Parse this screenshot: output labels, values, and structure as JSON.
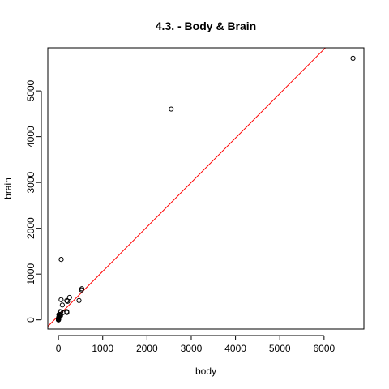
{
  "chart_data": {
    "type": "scatter",
    "title": "4.3. - Body & Brain",
    "xlabel": "body",
    "ylabel": "brain",
    "xlim": [
      -240,
      6900
    ],
    "ylim": [
      -200,
      5940
    ],
    "x_ticks": [
      0,
      1000,
      2000,
      3000,
      4000,
      5000,
      6000
    ],
    "y_ticks": [
      0,
      1000,
      2000,
      3000,
      4000,
      5000
    ],
    "grid": false,
    "legend": "none",
    "point_color": "#000000",
    "series": [
      {
        "points": [
          {
            "x": 6654,
            "y": 5712
          },
          {
            "x": 2547,
            "y": 4603
          },
          {
            "x": 62,
            "y": 1320
          },
          {
            "x": 521,
            "y": 655
          },
          {
            "x": 529,
            "y": 680
          },
          {
            "x": 465,
            "y": 423
          },
          {
            "x": 207,
            "y": 406
          },
          {
            "x": 250,
            "y": 490
          },
          {
            "x": 187,
            "y": 419
          },
          {
            "x": 87,
            "y": 325
          },
          {
            "x": 60,
            "y": 440
          },
          {
            "x": 187,
            "y": 180
          },
          {
            "x": 190,
            "y": 160
          },
          {
            "x": 35,
            "y": 180
          },
          {
            "x": 55,
            "y": 175
          },
          {
            "x": 27,
            "y": 115
          },
          {
            "x": 10,
            "y": 115
          },
          {
            "x": 4,
            "y": 50
          },
          {
            "x": 1,
            "y": 6
          },
          {
            "x": 3,
            "y": 25
          },
          {
            "x": 0.5,
            "y": 5
          },
          {
            "x": 0.05,
            "y": 0.3
          },
          {
            "x": 0.12,
            "y": 1
          },
          {
            "x": 2,
            "y": 12
          },
          {
            "x": 6,
            "y": 40
          },
          {
            "x": 14,
            "y": 70
          },
          {
            "x": 10,
            "y": 60
          },
          {
            "x": 36,
            "y": 120
          },
          {
            "x": 100,
            "y": 157
          },
          {
            "x": 48,
            "y": 90
          },
          {
            "x": 1,
            "y": 3
          },
          {
            "x": 0.3,
            "y": 4
          }
        ]
      }
    ],
    "fit_line": {
      "intercept": 90,
      "slope": 0.97,
      "color": "#ff0000"
    }
  }
}
